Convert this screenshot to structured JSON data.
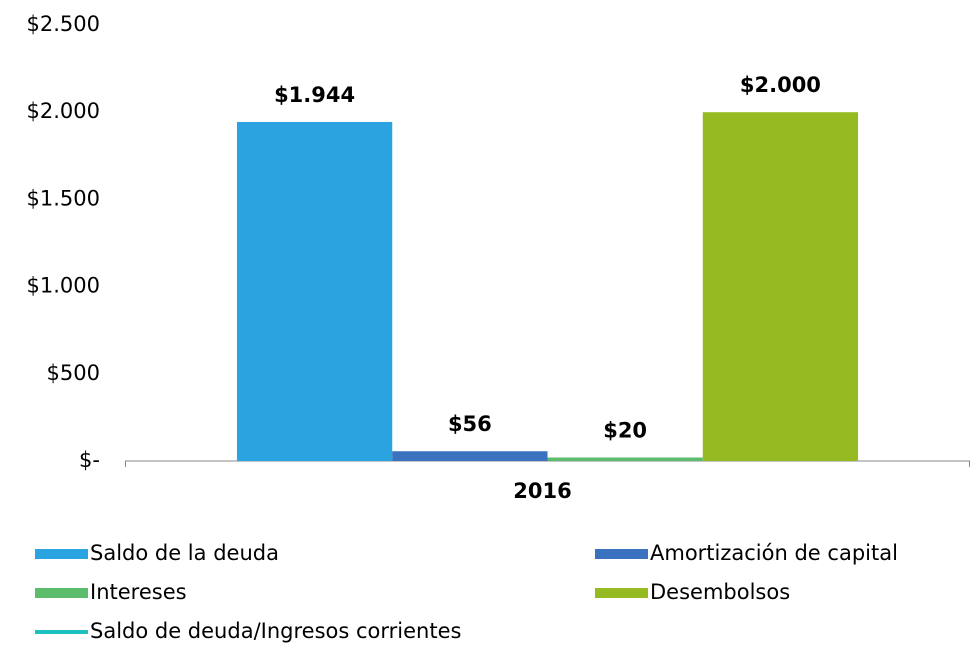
{
  "chart_data": {
    "type": "bar",
    "categories": [
      "2016"
    ],
    "series": [
      {
        "name": "Saldo de la deuda",
        "color": "#2aa3e0",
        "values": [
          1944
        ],
        "value_labels": [
          "$1.944"
        ]
      },
      {
        "name": "Amortización de capital",
        "color": "#3a72c0",
        "values": [
          56
        ],
        "value_labels": [
          "$56"
        ]
      },
      {
        "name": "Intereses",
        "color": "#5bbc6c",
        "values": [
          20
        ],
        "value_labels": [
          "$20"
        ]
      },
      {
        "name": "Desembolsos",
        "color": "#96bb22",
        "values": [
          2000
        ],
        "value_labels": [
          "$2.000"
        ]
      },
      {
        "name": "Saldo de deuda/Ingresos corrientes",
        "type": "line",
        "color": "#1fc1c0",
        "values": [
          null
        ]
      }
    ],
    "ylim": [
      0,
      2500
    ],
    "yticks": [
      {
        "value": 0,
        "label": "$-"
      },
      {
        "value": 500,
        "label": "$500"
      },
      {
        "value": 1000,
        "label": "$1.000"
      },
      {
        "value": 1500,
        "label": "$1.500"
      },
      {
        "value": 2000,
        "label": "$2.000"
      },
      {
        "value": 2500,
        "label": "$2.500"
      }
    ],
    "grid": false
  }
}
